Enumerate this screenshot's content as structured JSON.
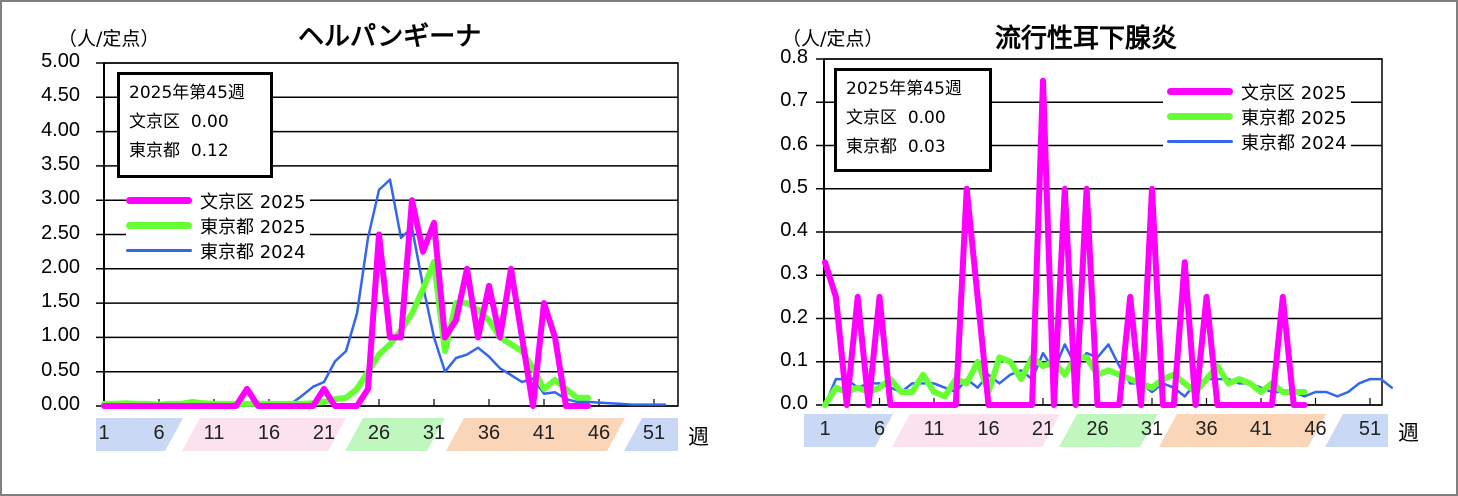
{
  "colors": {
    "bunkyo_2025": "#ff00ff",
    "tokyo_2025": "#66ff33",
    "tokyo_2024": "#3366ee",
    "band_winter": "#c9d8f5",
    "band_spring": "#fce1ee",
    "band_summer": "#bff7bf",
    "band_autumn": "#fbd5b8"
  },
  "week_axis": {
    "labels": [
      "1",
      "6",
      "11",
      "16",
      "21",
      "26",
      "31",
      "36",
      "41",
      "46",
      "51"
    ],
    "unit": "週"
  },
  "chart_data": [
    {
      "type": "line",
      "title": "ヘルパンギーナ",
      "ylabel": "（人/定点）",
      "xlabel": "週",
      "ylim": [
        0,
        5
      ],
      "yticks": [
        "0.00",
        "0.50",
        "1.00",
        "1.50",
        "2.00",
        "2.50",
        "3.00",
        "3.50",
        "4.00",
        "4.50",
        "5.00"
      ],
      "grid": true,
      "legend_position": "upper-left",
      "info_box": {
        "line1": "2025年第45週",
        "line2_label": "文京区",
        "line2_value": "0.00",
        "line3_label": "東京都",
        "line3_value": "0.12"
      },
      "series": [
        {
          "name": "文京区 2025",
          "key": "bunkyo_2025",
          "width": 6,
          "values": [
            0,
            0,
            0,
            0,
            0,
            0,
            0,
            0,
            0,
            0,
            0,
            0,
            0,
            0.25,
            0,
            0,
            0,
            0,
            0,
            0,
            0.25,
            0,
            0,
            0,
            0.25,
            2.5,
            1.0,
            1.0,
            3.0,
            2.25,
            2.67,
            1.0,
            1.25,
            2.0,
            1.0,
            1.75,
            1.0,
            2.0,
            1.0,
            0,
            1.5,
            1.0,
            0,
            0,
            0
          ]
        },
        {
          "name": "東京都 2025",
          "key": "tokyo_2025",
          "width": 6,
          "values": [
            0.03,
            0.03,
            0.04,
            0.03,
            0.03,
            0.02,
            0.03,
            0.03,
            0.06,
            0.04,
            0.03,
            0.03,
            0.03,
            0.03,
            0.03,
            0.03,
            0.03,
            0.03,
            0.03,
            0.04,
            0.06,
            0.1,
            0.12,
            0.25,
            0.5,
            0.75,
            0.9,
            1.1,
            1.35,
            1.7,
            2.1,
            0.8,
            1.5,
            1.5,
            1.4,
            1.25,
            1.0,
            0.9,
            0.8,
            0.55,
            0.25,
            0.38,
            0.25,
            0.12,
            0.12
          ]
        },
        {
          "name": "東京都 2024",
          "key": "tokyo_2024",
          "width": 2.5,
          "values": [
            0.02,
            0.02,
            0.02,
            0.01,
            0.03,
            0.01,
            0.02,
            0.01,
            0.02,
            0.0,
            0.03,
            0.03,
            0.02,
            0.02,
            0.02,
            0.02,
            0.03,
            0.03,
            0.15,
            0.28,
            0.35,
            0.65,
            0.8,
            1.35,
            2.45,
            3.15,
            3.3,
            2.45,
            2.6,
            1.75,
            1.0,
            0.5,
            0.7,
            0.75,
            0.85,
            0.72,
            0.55,
            0.45,
            0.35,
            0.4,
            0.18,
            0.2,
            0.1,
            0.06,
            0.06,
            0.05,
            0.04,
            0.03,
            0.02,
            0.02,
            0.02,
            0.02
          ]
        }
      ]
    },
    {
      "type": "line",
      "title": "流行性耳下腺炎",
      "ylabel": "（人/定点）",
      "xlabel": "週",
      "ylim": [
        0,
        0.8
      ],
      "yticks": [
        "0.0",
        "0.1",
        "0.2",
        "0.3",
        "0.4",
        "0.5",
        "0.6",
        "0.7",
        "0.8"
      ],
      "grid": true,
      "legend_position": "upper-right",
      "info_box": {
        "line1": "2025年第45週",
        "line2_label": "文京区",
        "line2_value": "0.00",
        "line3_label": "東京都",
        "line3_value": "0.03"
      },
      "series": [
        {
          "name": "文京区 2025",
          "key": "bunkyo_2025",
          "width": 6,
          "values": [
            0.33,
            0.25,
            0,
            0.25,
            0,
            0.25,
            0,
            0,
            0,
            0,
            0,
            0,
            0,
            0.5,
            0.25,
            0,
            0,
            0,
            0,
            0,
            0.75,
            0,
            0.5,
            0,
            0.5,
            0,
            0,
            0,
            0.25,
            0,
            0.5,
            0,
            0,
            0.33,
            0,
            0.25,
            0,
            0,
            0,
            0,
            0,
            0,
            0.25,
            0,
            0
          ]
        },
        {
          "name": "東京都 2025",
          "key": "tokyo_2025",
          "width": 6,
          "values": [
            0.0,
            0.04,
            0.03,
            0.04,
            0.03,
            0.04,
            0.06,
            0.03,
            0.03,
            0.07,
            0.03,
            0.02,
            0.06,
            0.05,
            0.1,
            0.03,
            0.11,
            0.1,
            0.06,
            0.11,
            0.09,
            0.1,
            0.07,
            0.11,
            0.11,
            0.07,
            0.08,
            0.07,
            0.06,
            0.05,
            0.04,
            0.06,
            0.07,
            0.05,
            0.03,
            0.06,
            0.09,
            0.05,
            0.06,
            0.05,
            0.03,
            0.05,
            0.03,
            0.03,
            0.03
          ]
        },
        {
          "name": "東京都 2024",
          "key": "tokyo_2024",
          "width": 2.5,
          "values": [
            0.0,
            0.06,
            0.06,
            0.04,
            0.05,
            0.05,
            0.04,
            0.03,
            0.05,
            0.05,
            0.05,
            0.04,
            0.03,
            0.06,
            0.04,
            0.07,
            0.05,
            0.07,
            0.08,
            0.06,
            0.12,
            0.08,
            0.14,
            0.09,
            0.12,
            0.11,
            0.14,
            0.09,
            0.05,
            0.05,
            0.03,
            0.05,
            0.04,
            0.02,
            0.05,
            0.06,
            0.06,
            0.06,
            0.05,
            0.05,
            0.04,
            0.03,
            0.03,
            0.03,
            0.02,
            0.03,
            0.03,
            0.02,
            0.03,
            0.05,
            0.06,
            0.06,
            0.04
          ]
        }
      ]
    }
  ]
}
